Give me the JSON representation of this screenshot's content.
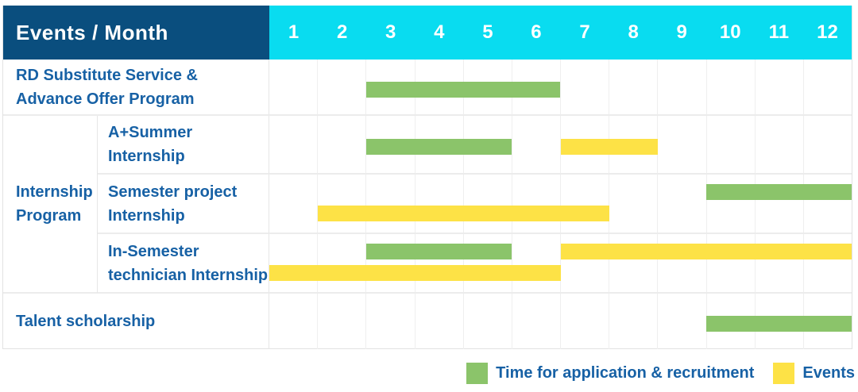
{
  "title": "Events / Month",
  "months": [
    "1",
    "2",
    "3",
    "4",
    "5",
    "6",
    "7",
    "8",
    "9",
    "10",
    "11",
    "12"
  ],
  "group_label": "Internship Program",
  "rows": [
    {
      "label": "RD Substitute Service &\nAdvance Offer Program",
      "bars": [
        {
          "color": "green",
          "start": 3,
          "end": 6,
          "lane": "single"
        }
      ]
    },
    {
      "label": "A+Summer\nInternship",
      "bars": [
        {
          "color": "green",
          "start": 3,
          "end": 5,
          "lane": "single"
        },
        {
          "color": "yellow",
          "start": 7,
          "end": 8,
          "lane": "single"
        }
      ]
    },
    {
      "label": "Semester project\nInternship",
      "bars": [
        {
          "color": "green",
          "start": 10,
          "end": 12,
          "lane": "top"
        },
        {
          "color": "yellow",
          "start": 2,
          "end": 7,
          "lane": "bottom"
        }
      ]
    },
    {
      "label": "In-Semester\ntechnician Internship",
      "bars": [
        {
          "color": "green",
          "start": 3,
          "end": 5,
          "lane": "top"
        },
        {
          "color": "yellow",
          "start": 7,
          "end": 12,
          "lane": "top"
        },
        {
          "color": "yellow",
          "start": 1,
          "end": 6,
          "lane": "bottom"
        }
      ]
    },
    {
      "label": "Talent scholarship",
      "bars": [
        {
          "color": "green",
          "start": 10,
          "end": 12,
          "lane": "single"
        }
      ]
    }
  ],
  "legend": [
    {
      "color": "green",
      "label": "Time for application & recruitment"
    },
    {
      "color": "yellow",
      "label": "Events"
    }
  ],
  "colors": {
    "navy": "#0a4e7e",
    "cyan": "#09dcf0",
    "green": "#8bc46a",
    "yellow": "#fde246",
    "text": "#1761a5"
  },
  "chart_data": {
    "type": "gantt",
    "title": "Events / Month",
    "x_unit": "month",
    "x_range": [
      1,
      12
    ],
    "x_ticks": [
      1,
      2,
      3,
      4,
      5,
      6,
      7,
      8,
      9,
      10,
      11,
      12
    ],
    "grid": true,
    "legend_position": "bottom-right",
    "series_legend": [
      {
        "name": "Time for application & recruitment",
        "color": "#8bc46a"
      },
      {
        "name": "Events",
        "color": "#fde246"
      }
    ],
    "tasks": [
      {
        "row": "RD Substitute Service & Advance Offer Program",
        "group": null,
        "series": "Time for application & recruitment",
        "start_month": 3,
        "end_month": 6
      },
      {
        "row": "A+Summer Internship",
        "group": "Internship Program",
        "series": "Time for application & recruitment",
        "start_month": 3,
        "end_month": 5
      },
      {
        "row": "A+Summer Internship",
        "group": "Internship Program",
        "series": "Events",
        "start_month": 7,
        "end_month": 8
      },
      {
        "row": "Semester project Internship",
        "group": "Internship Program",
        "series": "Time for application & recruitment",
        "start_month": 10,
        "end_month": 12
      },
      {
        "row": "Semester project Internship",
        "group": "Internship Program",
        "series": "Events",
        "start_month": 2,
        "end_month": 7
      },
      {
        "row": "In-Semester technician Internship",
        "group": "Internship Program",
        "series": "Time for application & recruitment",
        "start_month": 3,
        "end_month": 5
      },
      {
        "row": "In-Semester technician Internship",
        "group": "Internship Program",
        "series": "Events",
        "start_month": 7,
        "end_month": 12
      },
      {
        "row": "In-Semester technician Internship",
        "group": "Internship Program",
        "series": "Events",
        "start_month": 1,
        "end_month": 6
      },
      {
        "row": "Talent scholarship",
        "group": null,
        "series": "Time for application & recruitment",
        "start_month": 10,
        "end_month": 12
      }
    ]
  }
}
